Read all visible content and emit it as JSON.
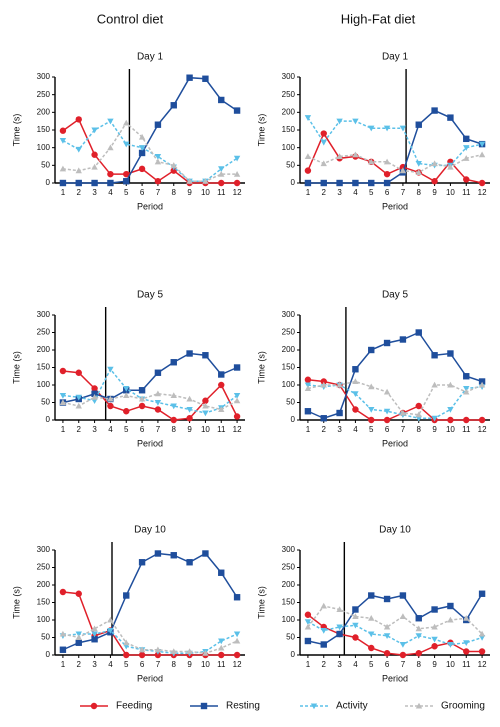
{
  "column_titles": [
    "Control diet",
    "High-Fat diet"
  ],
  "chart_data": [
    {
      "type": "line",
      "title": "Day 1",
      "x_label": "Period",
      "y_label": "Time (s)",
      "x": [
        1,
        2,
        3,
        4,
        5,
        6,
        7,
        8,
        9,
        10,
        11,
        12
      ],
      "xlim": [
        0.5,
        12.5
      ],
      "xticks": [
        1,
        2,
        3,
        4,
        5,
        6,
        7,
        8,
        9,
        10,
        11,
        12
      ],
      "ylim": [
        0,
        300
      ],
      "yticks": [
        0,
        50,
        100,
        150,
        200,
        250,
        300
      ],
      "divider_x": 5.2,
      "series": [
        {
          "name": "Feeding",
          "color": "#e0202a",
          "marker": "circle",
          "line_style": "solid",
          "values": [
            148,
            180,
            80,
            25,
            25,
            40,
            5,
            35,
            0,
            0,
            0,
            0
          ]
        },
        {
          "name": "Resting",
          "color": "#1f4e9c",
          "marker": "square",
          "line_style": "solid",
          "values": [
            0,
            0,
            0,
            0,
            5,
            85,
            165,
            220,
            298,
            295,
            235,
            205
          ]
        },
        {
          "name": "Activity",
          "color": "#5bc0e8",
          "marker": "triangle-down",
          "line_style": "dashed",
          "values": [
            120,
            95,
            150,
            175,
            110,
            100,
            75,
            45,
            5,
            5,
            40,
            70
          ]
        },
        {
          "name": "Grooming",
          "color": "#bdbdbd",
          "marker": "triangle-up",
          "line_style": "dashed",
          "values": [
            40,
            35,
            45,
            100,
            170,
            130,
            60,
            50,
            5,
            5,
            25,
            25
          ]
        }
      ]
    },
    {
      "type": "line",
      "title": "Day 1",
      "x_label": "Period",
      "y_label": "Time (s)",
      "x": [
        1,
        2,
        3,
        4,
        5,
        6,
        7,
        8,
        9,
        10,
        11,
        12
      ],
      "xlim": [
        0.5,
        12.5
      ],
      "xticks": [
        1,
        2,
        3,
        4,
        5,
        6,
        7,
        8,
        9,
        10,
        11,
        12
      ],
      "ylim": [
        0,
        300
      ],
      "yticks": [
        0,
        50,
        100,
        150,
        200,
        250,
        300
      ],
      "divider_x": 7.2,
      "series": [
        {
          "name": "Feeding",
          "color": "#e0202a",
          "marker": "circle",
          "line_style": "solid",
          "values": [
            35,
            140,
            70,
            75,
            60,
            25,
            45,
            30,
            5,
            60,
            10,
            0
          ]
        },
        {
          "name": "Resting",
          "color": "#1f4e9c",
          "marker": "square",
          "line_style": "solid",
          "values": [
            0,
            0,
            0,
            0,
            0,
            0,
            30,
            165,
            205,
            185,
            125,
            110
          ]
        },
        {
          "name": "Activity",
          "color": "#5bc0e8",
          "marker": "triangle-down",
          "line_style": "dashed",
          "values": [
            185,
            115,
            175,
            175,
            155,
            155,
            155,
            55,
            50,
            50,
            100,
            110
          ]
        },
        {
          "name": "Grooming",
          "color": "#bdbdbd",
          "marker": "triangle-up",
          "line_style": "dashed",
          "values": [
            75,
            55,
            75,
            80,
            60,
            60,
            35,
            30,
            55,
            45,
            70,
            80
          ]
        }
      ]
    },
    {
      "type": "line",
      "title": "Day 5",
      "x_label": "Period",
      "y_label": "Time (s)",
      "x": [
        1,
        2,
        3,
        4,
        5,
        6,
        7,
        8,
        9,
        10,
        11,
        12
      ],
      "xlim": [
        0.5,
        12.5
      ],
      "xticks": [
        1,
        2,
        3,
        4,
        5,
        6,
        7,
        8,
        9,
        10,
        11,
        12
      ],
      "ylim": [
        0,
        300
      ],
      "yticks": [
        0,
        50,
        100,
        150,
        200,
        250,
        300
      ],
      "divider_x": 3.7,
      "series": [
        {
          "name": "Feeding",
          "color": "#e0202a",
          "marker": "circle",
          "line_style": "solid",
          "values": [
            140,
            135,
            90,
            40,
            25,
            40,
            30,
            0,
            5,
            55,
            100,
            10
          ]
        },
        {
          "name": "Resting",
          "color": "#1f4e9c",
          "marker": "square",
          "line_style": "solid",
          "values": [
            50,
            60,
            75,
            60,
            85,
            85,
            135,
            165,
            190,
            185,
            130,
            150
          ]
        },
        {
          "name": "Activity",
          "color": "#5bc0e8",
          "marker": "triangle-down",
          "line_style": "dashed",
          "values": [
            70,
            65,
            55,
            145,
            90,
            60,
            50,
            40,
            30,
            20,
            35,
            70
          ]
        },
        {
          "name": "Grooming",
          "color": "#bdbdbd",
          "marker": "triangle-up",
          "line_style": "dashed",
          "values": [
            50,
            40,
            65,
            60,
            70,
            60,
            75,
            70,
            60,
            40,
            30,
            55
          ]
        }
      ]
    },
    {
      "type": "line",
      "title": "Day 5",
      "x_label": "Period",
      "y_label": "Time (s)",
      "x": [
        1,
        2,
        3,
        4,
        5,
        6,
        7,
        8,
        9,
        10,
        11,
        12
      ],
      "xlim": [
        0.5,
        12.5
      ],
      "xticks": [
        1,
        2,
        3,
        4,
        5,
        6,
        7,
        8,
        9,
        10,
        11,
        12
      ],
      "ylim": [
        0,
        300
      ],
      "yticks": [
        0,
        50,
        100,
        150,
        200,
        250,
        300
      ],
      "divider_x": 3.4,
      "series": [
        {
          "name": "Feeding",
          "color": "#e0202a",
          "marker": "circle",
          "line_style": "solid",
          "values": [
            115,
            110,
            100,
            30,
            0,
            0,
            20,
            40,
            0,
            0,
            0,
            0
          ]
        },
        {
          "name": "Resting",
          "color": "#1f4e9c",
          "marker": "square",
          "line_style": "solid",
          "values": [
            25,
            5,
            20,
            145,
            200,
            220,
            230,
            250,
            185,
            190,
            125,
            110
          ]
        },
        {
          "name": "Activity",
          "color": "#5bc0e8",
          "marker": "triangle-down",
          "line_style": "dashed",
          "values": [
            100,
            95,
            100,
            75,
            30,
            25,
            15,
            5,
            5,
            30,
            90,
            95
          ]
        },
        {
          "name": "Grooming",
          "color": "#bdbdbd",
          "marker": "triangle-up",
          "line_style": "dashed",
          "values": [
            90,
            100,
            100,
            110,
            95,
            80,
            20,
            15,
            100,
            100,
            80,
            100
          ]
        }
      ]
    },
    {
      "type": "line",
      "title": "Day 10",
      "x_label": "Period",
      "y_label": "Time (s)",
      "x": [
        1,
        2,
        3,
        4,
        5,
        6,
        7,
        8,
        9,
        10,
        11,
        12
      ],
      "xlim": [
        0.5,
        12.5
      ],
      "xticks": [
        1,
        2,
        3,
        4,
        5,
        6,
        7,
        8,
        9,
        10,
        11,
        12
      ],
      "ylim": [
        0,
        300
      ],
      "yticks": [
        0,
        50,
        100,
        150,
        200,
        250,
        300
      ],
      "divider_x": 4.1,
      "series": [
        {
          "name": "Feeding",
          "color": "#e0202a",
          "marker": "circle",
          "line_style": "solid",
          "values": [
            180,
            175,
            55,
            70,
            0,
            0,
            0,
            0,
            0,
            0,
            0,
            0
          ]
        },
        {
          "name": "Resting",
          "color": "#1f4e9c",
          "marker": "square",
          "line_style": "solid",
          "values": [
            15,
            35,
            45,
            65,
            170,
            265,
            290,
            285,
            265,
            290,
            235,
            165
          ]
        },
        {
          "name": "Activity",
          "color": "#5bc0e8",
          "marker": "triangle-down",
          "line_style": "dashed",
          "values": [
            55,
            60,
            60,
            70,
            25,
            15,
            10,
            5,
            5,
            10,
            40,
            60
          ]
        },
        {
          "name": "Grooming",
          "color": "#bdbdbd",
          "marker": "triangle-up",
          "line_style": "dashed",
          "values": [
            60,
            50,
            75,
            100,
            35,
            15,
            15,
            10,
            10,
            5,
            20,
            40
          ]
        }
      ]
    },
    {
      "type": "line",
      "title": "Day 10",
      "x_label": "Period",
      "y_label": "Time (s)",
      "x": [
        1,
        2,
        3,
        4,
        5,
        6,
        7,
        8,
        9,
        10,
        11,
        12
      ],
      "xlim": [
        0.5,
        12.5
      ],
      "xticks": [
        1,
        2,
        3,
        4,
        5,
        6,
        7,
        8,
        9,
        10,
        11,
        12
      ],
      "ylim": [
        0,
        300
      ],
      "yticks": [
        0,
        50,
        100,
        150,
        200,
        250,
        300
      ],
      "divider_x": 3.3,
      "series": [
        {
          "name": "Feeding",
          "color": "#e0202a",
          "marker": "circle",
          "line_style": "solid",
          "values": [
            115,
            80,
            60,
            50,
            20,
            5,
            0,
            5,
            25,
            35,
            10,
            10
          ]
        },
        {
          "name": "Resting",
          "color": "#1f4e9c",
          "marker": "square",
          "line_style": "solid",
          "values": [
            40,
            30,
            60,
            130,
            170,
            160,
            170,
            105,
            130,
            140,
            100,
            175
          ]
        },
        {
          "name": "Activity",
          "color": "#5bc0e8",
          "marker": "triangle-down",
          "line_style": "dashed",
          "values": [
            95,
            70,
            80,
            85,
            60,
            55,
            30,
            55,
            45,
            30,
            35,
            50
          ]
        },
        {
          "name": "Grooming",
          "color": "#bdbdbd",
          "marker": "triangle-up",
          "line_style": "dashed",
          "values": [
            80,
            140,
            130,
            110,
            105,
            80,
            110,
            75,
            80,
            100,
            105,
            60
          ]
        }
      ]
    }
  ]
}
